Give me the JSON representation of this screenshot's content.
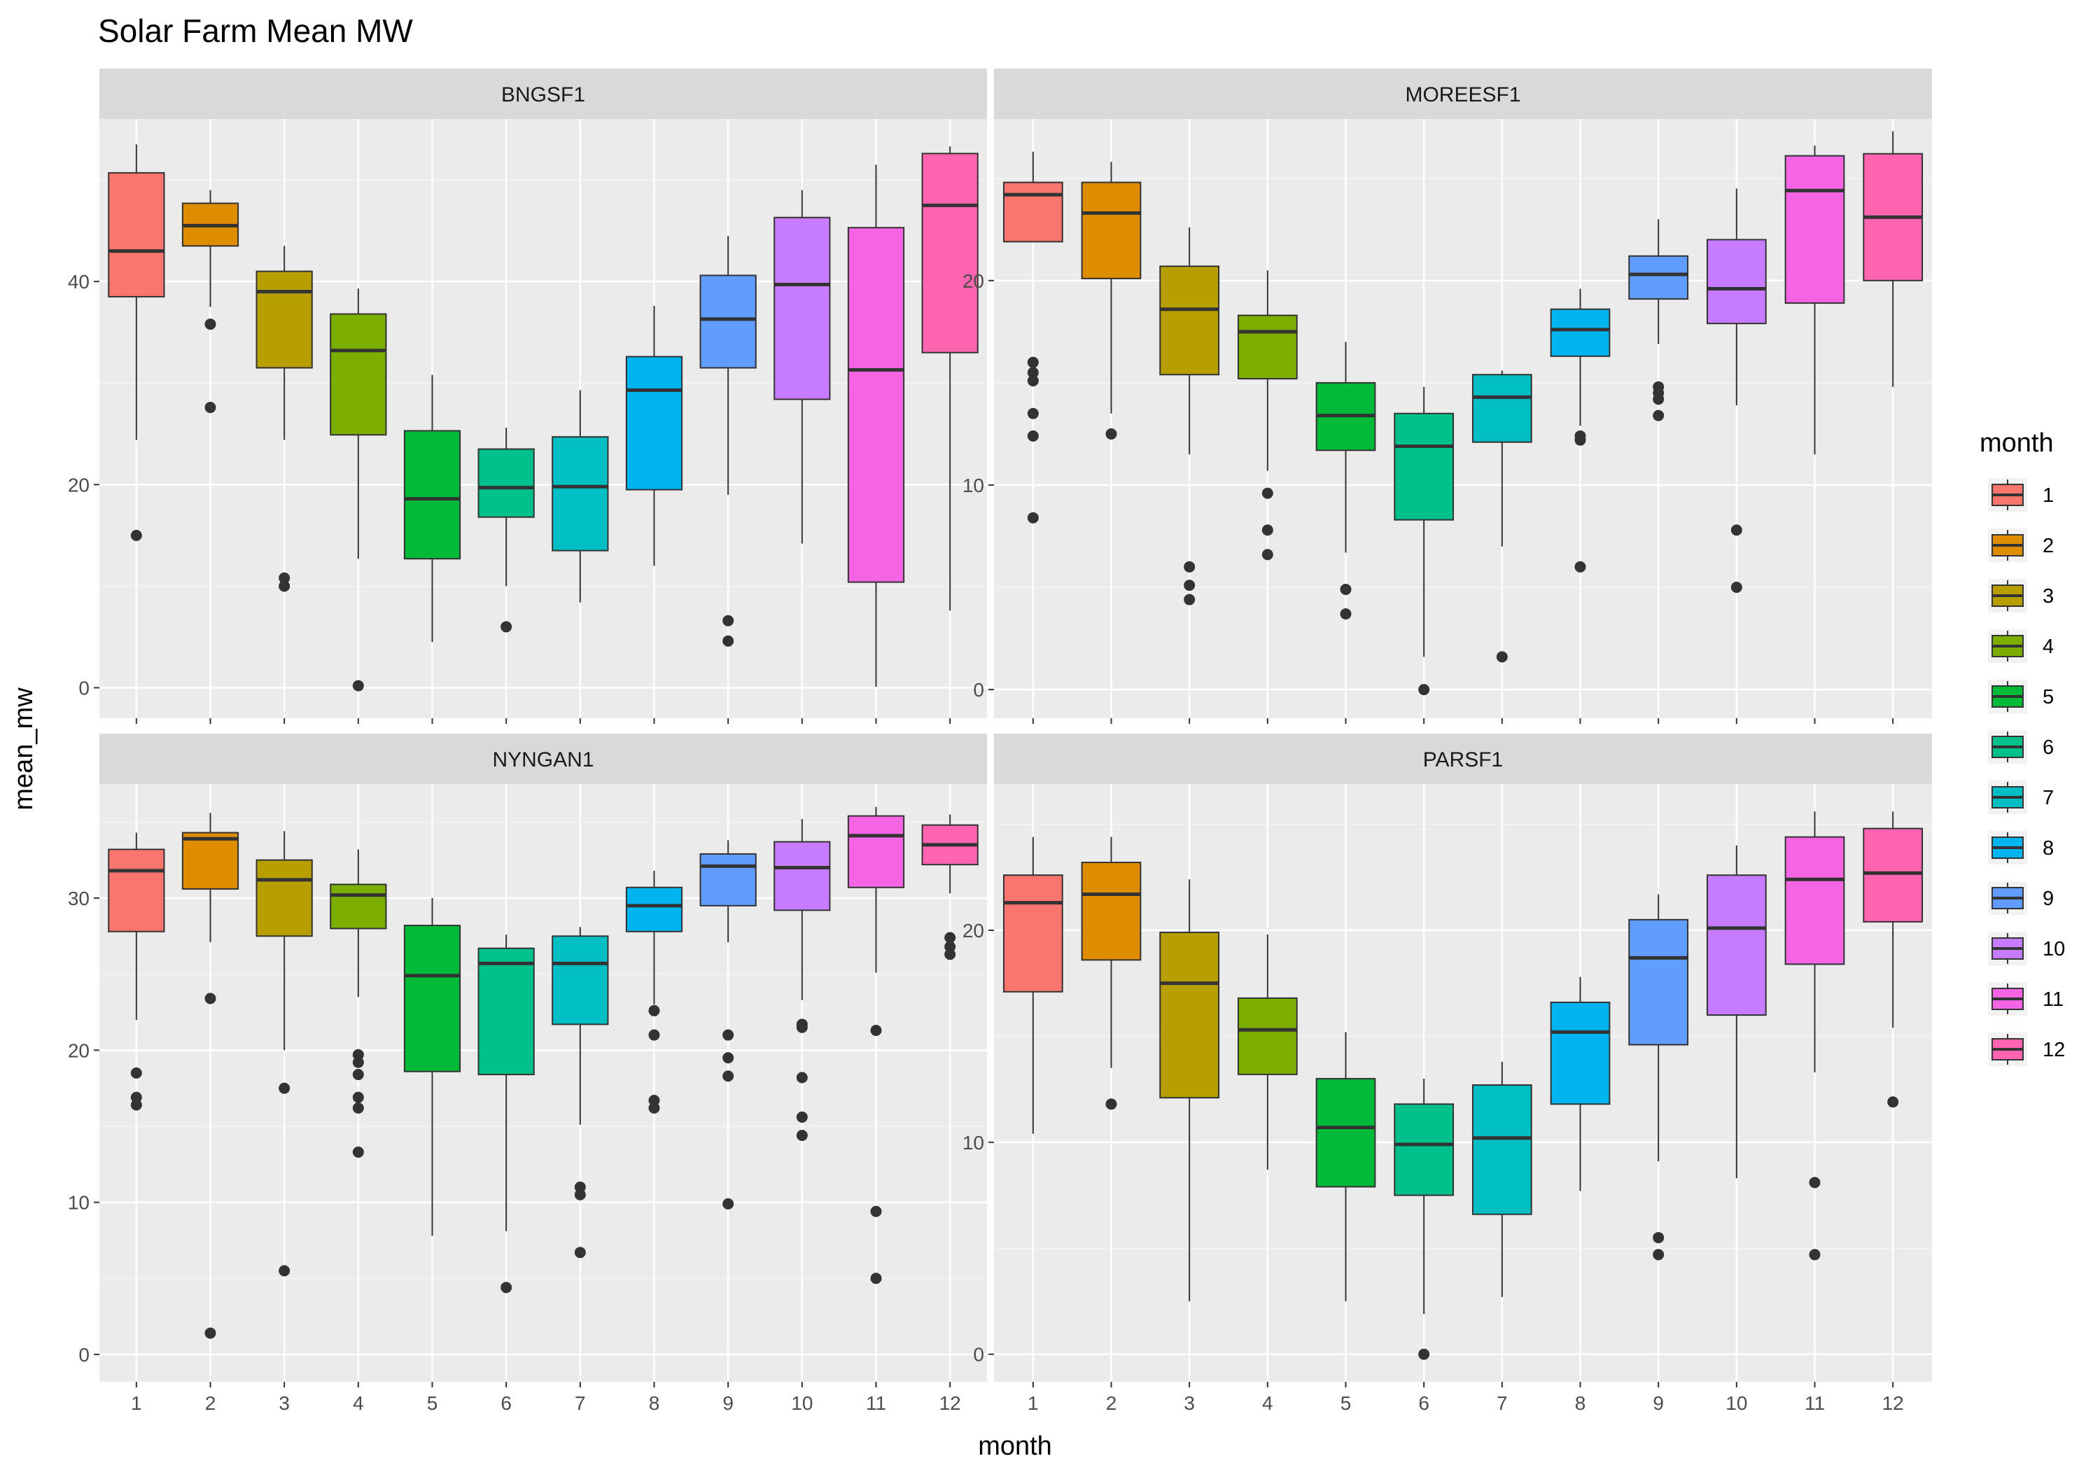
{
  "chart_data": {
    "type": "boxplot",
    "title": "Solar Farm Mean MW",
    "xlabel": "month",
    "ylabel": "mean_mw",
    "categories": [
      "1",
      "2",
      "3",
      "4",
      "5",
      "6",
      "7",
      "8",
      "9",
      "10",
      "11",
      "12"
    ],
    "colors": [
      "#F8766D",
      "#DE8C00",
      "#B79F00",
      "#7CAE00",
      "#00BA38",
      "#00C08B",
      "#00BFC4",
      "#00B4F0",
      "#619CFF",
      "#C77CFF",
      "#F564E3",
      "#FF64B0"
    ],
    "legend": {
      "title": "month",
      "position": "right",
      "labels": [
        "1",
        "2",
        "3",
        "4",
        "5",
        "6",
        "7",
        "8",
        "9",
        "10",
        "11",
        "12"
      ]
    },
    "panels": [
      {
        "name": "BNGSF1",
        "ylim": [
          -3,
          56
        ],
        "yticks": [
          0,
          20,
          40
        ],
        "tick_labels": [
          "0",
          "20",
          "40"
        ],
        "boxes": [
          {
            "month": 1,
            "min": 24.4,
            "q1": 38.5,
            "median": 43.0,
            "q3": 50.7,
            "max": 53.5,
            "outliers": [
              15.0
            ]
          },
          {
            "month": 2,
            "min": 37.5,
            "q1": 43.5,
            "median": 45.5,
            "q3": 47.7,
            "max": 49.0,
            "outliers": [
              35.8,
              27.6
            ]
          },
          {
            "month": 3,
            "min": 24.4,
            "q1": 31.5,
            "median": 39.0,
            "q3": 41.0,
            "max": 43.5,
            "outliers": [
              10.8,
              10.0
            ]
          },
          {
            "month": 4,
            "min": 12.7,
            "q1": 24.9,
            "median": 33.2,
            "q3": 36.8,
            "max": 39.3,
            "outliers": [
              0.2
            ]
          },
          {
            "month": 5,
            "min": 4.5,
            "q1": 12.7,
            "median": 18.6,
            "q3": 25.3,
            "max": 30.8,
            "outliers": []
          },
          {
            "month": 6,
            "min": 10.0,
            "q1": 16.8,
            "median": 19.7,
            "q3": 23.5,
            "max": 25.6,
            "outliers": [
              6.0
            ]
          },
          {
            "month": 7,
            "min": 8.4,
            "q1": 13.5,
            "median": 19.8,
            "q3": 24.7,
            "max": 29.3,
            "outliers": []
          },
          {
            "month": 8,
            "min": 12.0,
            "q1": 19.5,
            "median": 29.3,
            "q3": 32.6,
            "max": 37.6,
            "outliers": []
          },
          {
            "month": 9,
            "min": 19.0,
            "q1": 31.5,
            "median": 36.3,
            "q3": 40.6,
            "max": 44.5,
            "outliers": [
              6.6,
              4.6
            ]
          },
          {
            "month": 10,
            "min": 14.2,
            "q1": 28.4,
            "median": 39.7,
            "q3": 46.3,
            "max": 49.0,
            "outliers": []
          },
          {
            "month": 11,
            "min": 0.1,
            "q1": 10.4,
            "median": 31.3,
            "q3": 45.3,
            "max": 51.5,
            "outliers": []
          },
          {
            "month": 12,
            "min": 7.6,
            "q1": 33.0,
            "median": 47.5,
            "q3": 52.6,
            "max": 53.3,
            "outliers": []
          }
        ]
      },
      {
        "name": "MOREESF1",
        "ylim": [
          -1.4,
          27.9
        ],
        "yticks": [
          0,
          10,
          20
        ],
        "tick_labels": [
          "0",
          "10",
          "20"
        ],
        "boxes": [
          {
            "month": 1,
            "min": 21.9,
            "q1": 21.9,
            "median": 24.2,
            "q3": 24.8,
            "max": 26.3,
            "outliers": [
              16.0,
              15.5,
              15.1,
              13.5,
              12.4,
              8.4
            ]
          },
          {
            "month": 2,
            "min": 13.5,
            "q1": 20.1,
            "median": 23.3,
            "q3": 24.8,
            "max": 25.8,
            "outliers": [
              12.5
            ]
          },
          {
            "month": 3,
            "min": 11.5,
            "q1": 15.4,
            "median": 18.6,
            "q3": 20.7,
            "max": 22.6,
            "outliers": [
              6.0,
              5.1,
              4.4
            ]
          },
          {
            "month": 4,
            "min": 10.7,
            "q1": 15.2,
            "median": 17.5,
            "q3": 18.3,
            "max": 20.5,
            "outliers": [
              9.6,
              7.8,
              6.6
            ]
          },
          {
            "month": 5,
            "min": 6.7,
            "q1": 11.7,
            "median": 13.4,
            "q3": 15.0,
            "max": 17.0,
            "outliers": [
              4.9,
              3.7
            ]
          },
          {
            "month": 6,
            "min": 1.6,
            "q1": 8.3,
            "median": 11.9,
            "q3": 13.5,
            "max": 14.8,
            "outliers": [
              0.0
            ]
          },
          {
            "month": 7,
            "min": 7.0,
            "q1": 12.1,
            "median": 14.3,
            "q3": 15.4,
            "max": 15.6,
            "outliers": [
              1.6
            ]
          },
          {
            "month": 8,
            "min": 12.9,
            "q1": 16.3,
            "median": 17.6,
            "q3": 18.6,
            "max": 19.6,
            "outliers": [
              12.4,
              12.2,
              6.0
            ]
          },
          {
            "month": 9,
            "min": 16.9,
            "q1": 19.1,
            "median": 20.3,
            "q3": 21.2,
            "max": 23.0,
            "outliers": [
              14.8,
              14.5,
              14.2,
              13.4
            ]
          },
          {
            "month": 10,
            "min": 13.9,
            "q1": 17.9,
            "median": 19.6,
            "q3": 22.0,
            "max": 24.5,
            "outliers": [
              7.8,
              5.0
            ]
          },
          {
            "month": 11,
            "min": 11.5,
            "q1": 18.9,
            "median": 24.4,
            "q3": 26.1,
            "max": 26.6,
            "outliers": []
          },
          {
            "month": 12,
            "min": 14.8,
            "q1": 20.0,
            "median": 23.1,
            "q3": 26.2,
            "max": 27.3,
            "outliers": []
          }
        ]
      },
      {
        "name": "NYNGAN1",
        "ylim": [
          -1.8,
          37.5
        ],
        "yticks": [
          0,
          10,
          20,
          30
        ],
        "tick_labels": [
          "0",
          "10",
          "20",
          "30"
        ],
        "boxes": [
          {
            "month": 1,
            "min": 22.0,
            "q1": 27.8,
            "median": 31.8,
            "q3": 33.2,
            "max": 34.3,
            "outliers": [
              18.5,
              16.9,
              16.4
            ]
          },
          {
            "month": 2,
            "min": 27.1,
            "q1": 30.6,
            "median": 33.9,
            "q3": 34.3,
            "max": 35.6,
            "outliers": [
              23.4,
              1.4
            ]
          },
          {
            "month": 3,
            "min": 20.0,
            "q1": 27.5,
            "median": 31.2,
            "q3": 32.5,
            "max": 34.4,
            "outliers": [
              17.5,
              5.5
            ]
          },
          {
            "month": 4,
            "min": 23.5,
            "q1": 28.0,
            "median": 30.2,
            "q3": 30.9,
            "max": 33.2,
            "outliers": [
              19.7,
              19.2,
              18.4,
              16.9,
              16.2,
              13.3
            ]
          },
          {
            "month": 5,
            "min": 7.8,
            "q1": 18.6,
            "median": 24.9,
            "q3": 28.2,
            "max": 30.0,
            "outliers": []
          },
          {
            "month": 6,
            "min": 8.1,
            "q1": 18.4,
            "median": 25.7,
            "q3": 26.7,
            "max": 27.6,
            "outliers": [
              4.4
            ]
          },
          {
            "month": 7,
            "min": 15.1,
            "q1": 21.7,
            "median": 25.7,
            "q3": 27.5,
            "max": 28.1,
            "outliers": [
              11.0,
              10.5,
              6.7
            ]
          },
          {
            "month": 8,
            "min": 23.0,
            "q1": 27.8,
            "median": 29.5,
            "q3": 30.7,
            "max": 31.8,
            "outliers": [
              22.6,
              21.0,
              16.7,
              16.2
            ]
          },
          {
            "month": 9,
            "min": 27.1,
            "q1": 29.5,
            "median": 32.1,
            "q3": 32.9,
            "max": 33.8,
            "outliers": [
              21.0,
              19.5,
              18.3,
              9.9
            ]
          },
          {
            "month": 10,
            "min": 23.3,
            "q1": 29.2,
            "median": 32.0,
            "q3": 33.7,
            "max": 35.2,
            "outliers": [
              21.7,
              21.5,
              18.2,
              15.6,
              14.4
            ]
          },
          {
            "month": 11,
            "min": 25.1,
            "q1": 30.7,
            "median": 34.1,
            "q3": 35.4,
            "max": 36.0,
            "outliers": [
              21.3,
              9.4,
              5.0
            ]
          },
          {
            "month": 12,
            "min": 30.3,
            "q1": 32.2,
            "median": 33.5,
            "q3": 34.8,
            "max": 35.5,
            "outliers": [
              27.4,
              26.8,
              26.3
            ]
          }
        ]
      },
      {
        "name": "PARSF1",
        "ylim": [
          -1.3,
          26.9
        ],
        "yticks": [
          0,
          10,
          20
        ],
        "tick_labels": [
          "0",
          "10",
          "20"
        ],
        "boxes": [
          {
            "month": 1,
            "min": 10.4,
            "q1": 17.1,
            "median": 21.3,
            "q3": 22.6,
            "max": 24.4,
            "outliers": []
          },
          {
            "month": 2,
            "min": 13.5,
            "q1": 18.6,
            "median": 21.7,
            "q3": 23.2,
            "max": 24.4,
            "outliers": [
              11.8
            ]
          },
          {
            "month": 3,
            "min": 2.5,
            "q1": 12.1,
            "median": 17.5,
            "q3": 19.9,
            "max": 22.4,
            "outliers": []
          },
          {
            "month": 4,
            "min": 8.7,
            "q1": 13.2,
            "median": 15.3,
            "q3": 16.8,
            "max": 19.8,
            "outliers": []
          },
          {
            "month": 5,
            "min": 2.5,
            "q1": 7.9,
            "median": 10.7,
            "q3": 13.0,
            "max": 15.2,
            "outliers": []
          },
          {
            "month": 6,
            "min": 1.9,
            "q1": 7.5,
            "median": 9.9,
            "q3": 11.8,
            "max": 13.0,
            "outliers": [
              0.0
            ]
          },
          {
            "month": 7,
            "min": 2.7,
            "q1": 6.6,
            "median": 10.2,
            "q3": 12.7,
            "max": 13.8,
            "outliers": []
          },
          {
            "month": 8,
            "min": 7.7,
            "q1": 11.8,
            "median": 15.2,
            "q3": 16.6,
            "max": 17.8,
            "outliers": []
          },
          {
            "month": 9,
            "min": 9.1,
            "q1": 14.6,
            "median": 18.7,
            "q3": 20.5,
            "max": 21.7,
            "outliers": [
              5.5,
              4.7
            ]
          },
          {
            "month": 10,
            "min": 8.3,
            "q1": 16.0,
            "median": 20.1,
            "q3": 22.6,
            "max": 24.0,
            "outliers": []
          },
          {
            "month": 11,
            "min": 13.3,
            "q1": 18.4,
            "median": 22.4,
            "q3": 24.4,
            "max": 25.6,
            "outliers": [
              8.1,
              4.7
            ]
          },
          {
            "month": 12,
            "min": 15.4,
            "q1": 20.4,
            "median": 22.7,
            "q3": 24.8,
            "max": 25.6,
            "outliers": [
              11.9
            ]
          }
        ]
      }
    ]
  }
}
